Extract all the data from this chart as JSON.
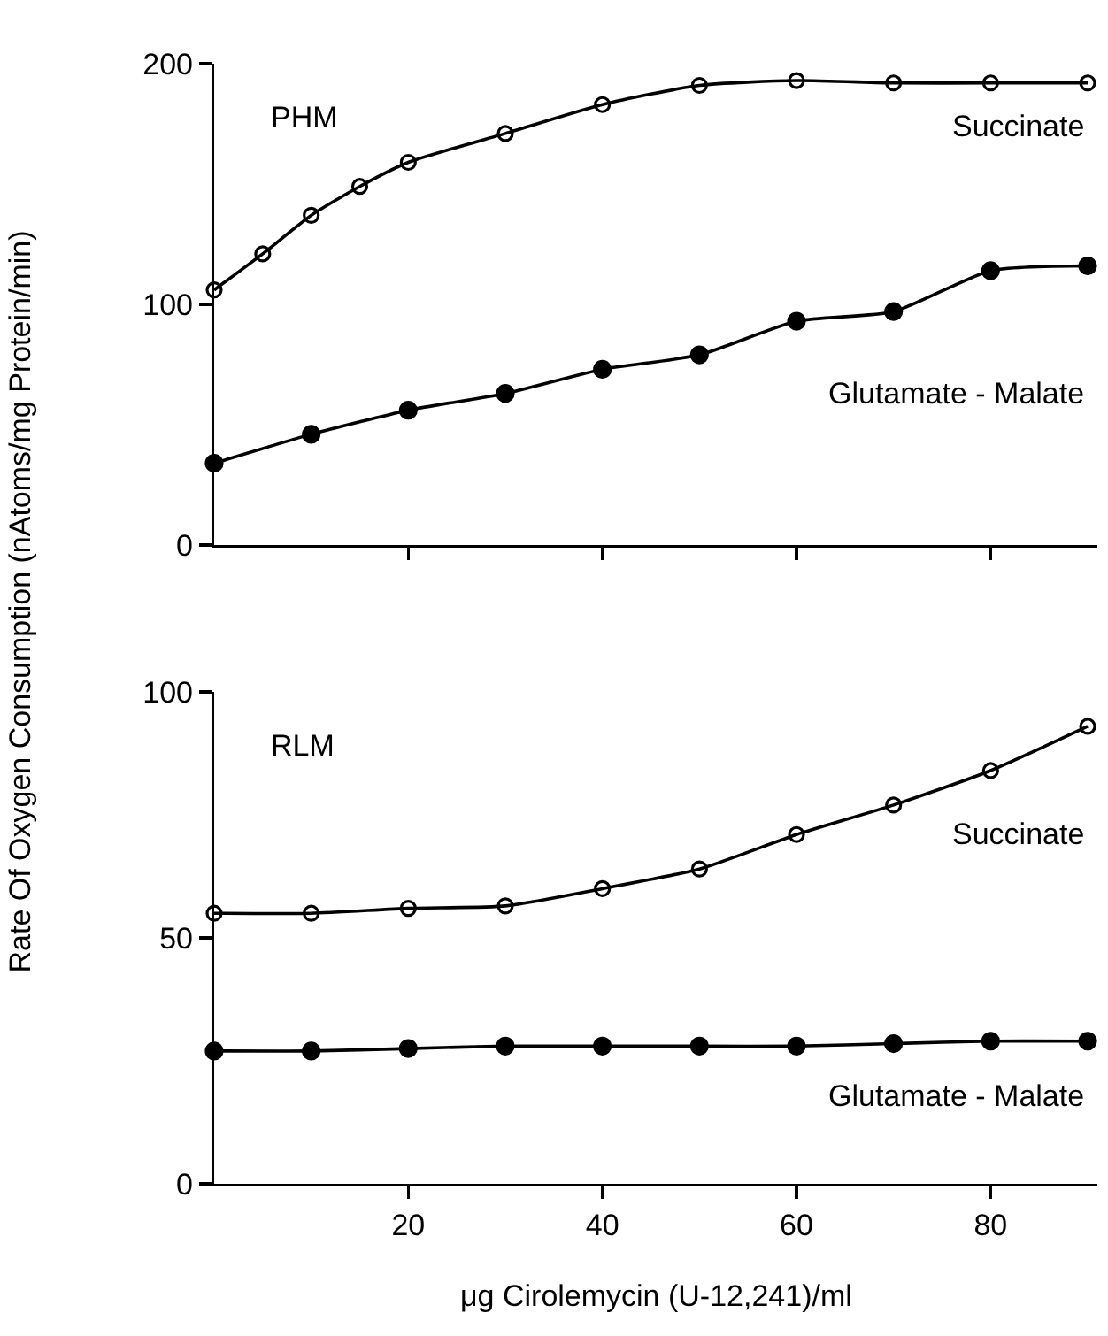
{
  "chart_data": [
    {
      "type": "line",
      "ylabel": "Rate Of Oxygen Consumption (nAtoms/mg Protein/min)",
      "annotations": [
        "PHM"
      ],
      "xlim": [
        0,
        91
      ],
      "xticks": [
        20,
        40,
        60,
        80
      ],
      "ylim": [
        0,
        200
      ],
      "yticks": [
        0,
        100,
        200
      ],
      "tick_labels": "y",
      "grid": false,
      "legend": false,
      "marker": "circle",
      "line_style": "solid",
      "x": [
        0,
        5,
        10,
        15,
        20,
        30,
        40,
        50,
        60,
        70,
        80,
        90
      ],
      "series": [
        {
          "name": "Succinate",
          "color": "#000000",
          "values": [
            106,
            121,
            137,
            149,
            159,
            171,
            183,
            191,
            193,
            192,
            192,
            192
          ]
        },
        {
          "name": "Glutamate - Malate",
          "color": "#000000",
          "x": [
            0,
            10,
            20,
            30,
            40,
            50,
            60,
            70,
            80,
            90
          ],
          "values": [
            34,
            46,
            56,
            63,
            73,
            79,
            93,
            97,
            114,
            116
          ]
        }
      ]
    },
    {
      "type": "line",
      "xlabel": "μg Cirolemycin (U-12,241)/ml",
      "annotations": [
        "RLM"
      ],
      "xlim": [
        0,
        91
      ],
      "xticks": [
        20,
        40,
        60,
        80
      ],
      "ylim": [
        0,
        100
      ],
      "yticks": [
        0,
        50,
        100
      ],
      "grid": false,
      "legend": false,
      "marker": "circle",
      "line_style": "solid",
      "x": [
        0,
        10,
        20,
        30,
        40,
        50,
        60,
        70,
        80,
        90
      ],
      "series": [
        {
          "name": "Succinate",
          "color": "#000000",
          "values": [
            55,
            55,
            56,
            56.5,
            60,
            64,
            71,
            77,
            84,
            93
          ]
        },
        {
          "name": "Glutamate - Malate",
          "color": "#000000",
          "values": [
            27,
            27,
            27.5,
            28,
            28,
            28,
            28,
            28.5,
            29,
            29
          ]
        }
      ]
    }
  ]
}
